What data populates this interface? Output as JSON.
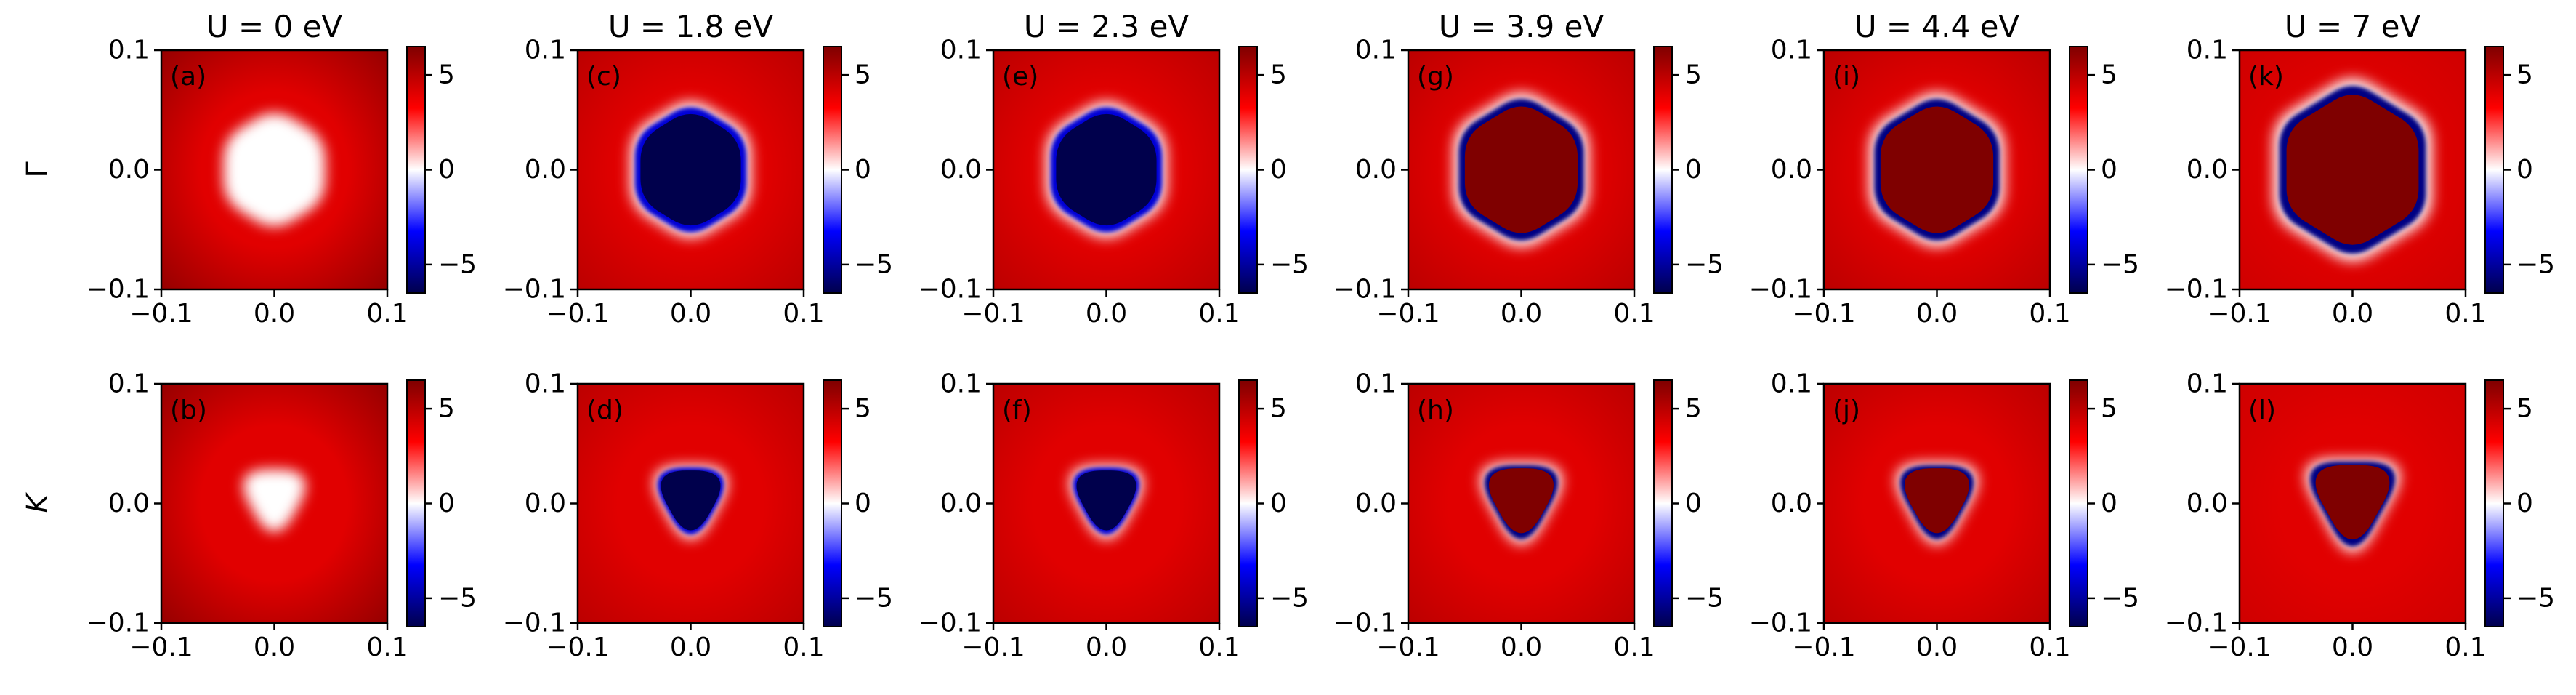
{
  "figure": {
    "row_labels": [
      "Γ",
      "K"
    ],
    "colorbar_ticks": [
      "5",
      "0",
      "−5"
    ],
    "colorbar_range": [
      -6.5,
      6.5
    ],
    "colorbar_colors": [
      "#00004c",
      "#0000ff",
      "#ffffff",
      "#ff0000",
      "#7f0000"
    ],
    "x_ticks": [
      "−0.1",
      "0.0",
      "0.1"
    ],
    "y_ticks": [
      "0.1",
      "0.0",
      "−0.1"
    ]
  },
  "chart_data": [
    {
      "type": "heatmap",
      "panel": "(a)",
      "title": "U = 0 eV",
      "row": "Γ",
      "U": 0,
      "shape": "hexagon",
      "xlim": [
        -0.1,
        0.1
      ],
      "ylim": [
        -0.1,
        0.1
      ],
      "clim": [
        -6.5,
        6.5
      ],
      "center_value": 0,
      "boundary_value": null,
      "background_value": 4,
      "edge_value": 6
    },
    {
      "type": "heatmap",
      "panel": "(b)",
      "title": "",
      "row": "K",
      "U": 0,
      "shape": "triangle",
      "xlim": [
        -0.1,
        0.1
      ],
      "ylim": [
        -0.1,
        0.1
      ],
      "clim": [
        -6.5,
        6.5
      ],
      "center_value": 0,
      "boundary_value": null,
      "background_value": 4,
      "edge_value": 6
    },
    {
      "type": "heatmap",
      "panel": "(c)",
      "title": "U = 1.8 eV",
      "row": "Γ",
      "U": 1.8,
      "shape": "hexagon",
      "xlim": [
        -0.1,
        0.1
      ],
      "ylim": [
        -0.1,
        0.1
      ],
      "clim": [
        -6.5,
        6.5
      ],
      "center_value": -6.5,
      "boundary_value": -4,
      "background_value": 4,
      "edge_value": 5
    },
    {
      "type": "heatmap",
      "panel": "(d)",
      "title": "",
      "row": "K",
      "U": 1.8,
      "shape": "triangle",
      "xlim": [
        -0.1,
        0.1
      ],
      "ylim": [
        -0.1,
        0.1
      ],
      "clim": [
        -6.5,
        6.5
      ],
      "center_value": -6.5,
      "boundary_value": -4,
      "background_value": 4,
      "edge_value": 5
    },
    {
      "type": "heatmap",
      "panel": "(e)",
      "title": "U = 2.3 eV",
      "row": "Γ",
      "U": 2.3,
      "shape": "hexagon",
      "xlim": [
        -0.1,
        0.1
      ],
      "ylim": [
        -0.1,
        0.1
      ],
      "clim": [
        -6.5,
        6.5
      ],
      "center_value": -6.5,
      "boundary_value": -4,
      "background_value": 4,
      "edge_value": 5
    },
    {
      "type": "heatmap",
      "panel": "(f)",
      "title": "",
      "row": "K",
      "U": 2.3,
      "shape": "triangle",
      "xlim": [
        -0.1,
        0.1
      ],
      "ylim": [
        -0.1,
        0.1
      ],
      "clim": [
        -6.5,
        6.5
      ],
      "center_value": -6.5,
      "boundary_value": -4,
      "background_value": 4,
      "edge_value": 5
    },
    {
      "type": "heatmap",
      "panel": "(g)",
      "title": "U = 3.9 eV",
      "row": "Γ",
      "U": 3.9,
      "shape": "hexagon",
      "xlim": [
        -0.1,
        0.1
      ],
      "ylim": [
        -0.1,
        0.1
      ],
      "clim": [
        -6.5,
        6.5
      ],
      "center_value": 6.5,
      "boundary_value": -6.5,
      "background_value": 4,
      "edge_value": 5
    },
    {
      "type": "heatmap",
      "panel": "(h)",
      "title": "",
      "row": "K",
      "U": 3.9,
      "shape": "triangle",
      "xlim": [
        -0.1,
        0.1
      ],
      "ylim": [
        -0.1,
        0.1
      ],
      "clim": [
        -6.5,
        6.5
      ],
      "center_value": 6.5,
      "boundary_value": -6.5,
      "background_value": 4,
      "edge_value": 5
    },
    {
      "type": "heatmap",
      "panel": "(i)",
      "title": "U = 4.4 eV",
      "row": "Γ",
      "U": 4.4,
      "shape": "hexagon",
      "xlim": [
        -0.1,
        0.1
      ],
      "ylim": [
        -0.1,
        0.1
      ],
      "clim": [
        -6.5,
        6.5
      ],
      "center_value": 6.5,
      "boundary_value": -6.5,
      "background_value": 4,
      "edge_value": 5
    },
    {
      "type": "heatmap",
      "panel": "(j)",
      "title": "",
      "row": "K",
      "U": 4.4,
      "shape": "triangle",
      "xlim": [
        -0.1,
        0.1
      ],
      "ylim": [
        -0.1,
        0.1
      ],
      "clim": [
        -6.5,
        6.5
      ],
      "center_value": 6.5,
      "boundary_value": -6.5,
      "background_value": 4,
      "edge_value": 5
    },
    {
      "type": "heatmap",
      "panel": "(k)",
      "title": "U = 7 eV",
      "row": "Γ",
      "U": 7,
      "shape": "hexagon",
      "xlim": [
        -0.1,
        0.1
      ],
      "ylim": [
        -0.1,
        0.1
      ],
      "clim": [
        -6.5,
        6.5
      ],
      "center_value": 6.5,
      "boundary_value": -6.5,
      "background_value": 4,
      "edge_value": 4.5
    },
    {
      "type": "heatmap",
      "panel": "(l)",
      "title": "",
      "row": "K",
      "U": 7,
      "shape": "triangle",
      "xlim": [
        -0.1,
        0.1
      ],
      "ylim": [
        -0.1,
        0.1
      ],
      "clim": [
        -6.5,
        6.5
      ],
      "center_value": 6.5,
      "boundary_value": -6.5,
      "background_value": 4,
      "edge_value": 4.5
    }
  ]
}
